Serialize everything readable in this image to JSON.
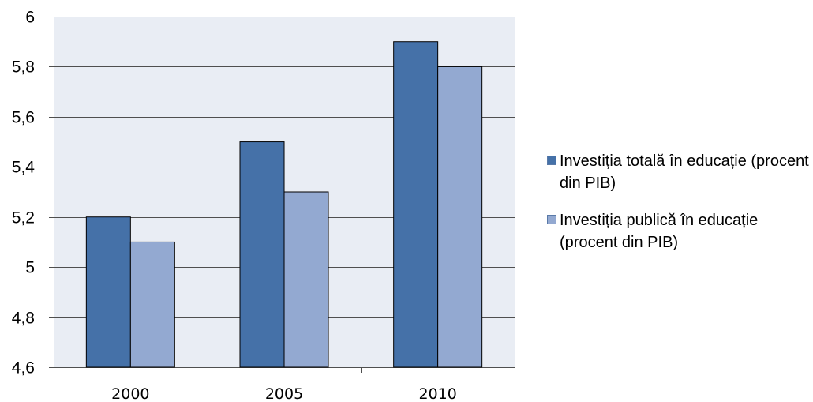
{
  "colors": {
    "plot_background": "#e9edf4",
    "grid": "#4f4f4f",
    "series_total": "#4571a8",
    "series_public": "#93a9d1",
    "bar_outline": "#000000"
  },
  "chart_data": {
    "type": "bar",
    "title": "",
    "xlabel": "",
    "ylabel": "",
    "categories": [
      "2000",
      "2005",
      "2010"
    ],
    "series": [
      {
        "name": "Investiția totală în educație (procent din PIB)",
        "values": [
          5.2,
          5.5,
          5.9
        ]
      },
      {
        "name": "Investiția publică în educație (procent din PIB)",
        "values": [
          5.1,
          5.3,
          5.8
        ]
      }
    ],
    "ylim": [
      4.6,
      6.0
    ],
    "yticks": [
      "4,6",
      "4,8",
      "5",
      "5,2",
      "5,4",
      "5,6",
      "5,8",
      "6"
    ],
    "grid": true,
    "legend_position": "right"
  },
  "legend": {
    "item0": "Investiția totală în educație (procent din PIB)",
    "item1": "Investiția publică în educație (procent din PIB)"
  }
}
